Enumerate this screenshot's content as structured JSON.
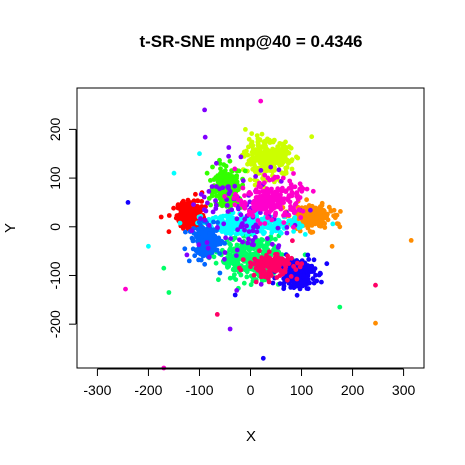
{
  "chart_data": {
    "type": "scatter",
    "title": "t-SR-SNE mnp@40 = 0.4346",
    "xlabel": "X",
    "ylabel": "Y",
    "xlim": [
      -340,
      340
    ],
    "ylim": [
      -290,
      285
    ],
    "xticks": [
      -300,
      -200,
      -100,
      0,
      100,
      200,
      300
    ],
    "yticks": [
      -200,
      -100,
      0,
      100,
      200
    ],
    "grid": false,
    "legend": "none",
    "series": [
      {
        "color": "#FF0000",
        "cx": -120,
        "cy": 25,
        "sx": 12,
        "sy": 14,
        "n": 260,
        "outliers": [
          [
            -175,
            20
          ],
          [
            -160,
            -10
          ],
          [
            -95,
            70
          ],
          [
            -140,
            45
          ]
        ]
      },
      {
        "color": "#FF8C00",
        "cx": 118,
        "cy": 20,
        "sx": 20,
        "sy": 12,
        "n": 200,
        "outliers": [
          [
            315,
            -28
          ],
          [
            245,
            -198
          ],
          [
            160,
            -40
          ],
          [
            175,
            0
          ]
        ]
      },
      {
        "color": "#CCFF00",
        "cx": 35,
        "cy": 140,
        "sx": 22,
        "sy": 18,
        "n": 300,
        "outliers": [
          [
            120,
            185
          ],
          [
            -10,
            200
          ],
          [
            70,
            110
          ]
        ]
      },
      {
        "color": "#33FF00",
        "cx": -45,
        "cy": 80,
        "sx": 14,
        "sy": 20,
        "n": 240,
        "outliers": [
          [
            -85,
            110
          ],
          [
            -60,
            130
          ]
        ]
      },
      {
        "color": "#00FF66",
        "cx": 0,
        "cy": -65,
        "sx": 30,
        "sy": 22,
        "n": 320,
        "outliers": [
          [
            -170,
            -85
          ],
          [
            175,
            -165
          ],
          [
            -160,
            -135
          ]
        ]
      },
      {
        "color": "#00FFFF",
        "cx": 0,
        "cy": 5,
        "sx": 45,
        "sy": 10,
        "n": 300,
        "outliers": [
          [
            -150,
            110
          ],
          [
            -100,
            150
          ],
          [
            -200,
            -40
          ]
        ]
      },
      {
        "color": "#0066FF",
        "cx": -85,
        "cy": -30,
        "sx": 14,
        "sy": 16,
        "n": 200,
        "outliers": [
          [
            -120,
            -70
          ],
          [
            -60,
            -95
          ]
        ]
      },
      {
        "color": "#1400FF",
        "cx": 90,
        "cy": -95,
        "sx": 18,
        "sy": 16,
        "n": 220,
        "outliers": [
          [
            25,
            -270
          ],
          [
            -30,
            -140
          ],
          [
            -240,
            50
          ]
        ]
      },
      {
        "color": "#8000FF",
        "cx": -10,
        "cy": 20,
        "sx": 50,
        "sy": 55,
        "n": 120,
        "outliers": [
          [
            -90,
            240
          ],
          [
            -40,
            -210
          ]
        ]
      },
      {
        "color": "#FF00CC",
        "cx": 40,
        "cy": 55,
        "sx": 30,
        "sy": 20,
        "n": 220,
        "outliers": [
          [
            20,
            258
          ],
          [
            -245,
            -128
          ],
          [
            -170,
            -300
          ]
        ]
      },
      {
        "color": "#FF0066",
        "cx": 40,
        "cy": -80,
        "sx": 22,
        "sy": 12,
        "n": 160,
        "outliers": [
          [
            245,
            -120
          ],
          [
            -65,
            -180
          ]
        ]
      }
    ]
  }
}
